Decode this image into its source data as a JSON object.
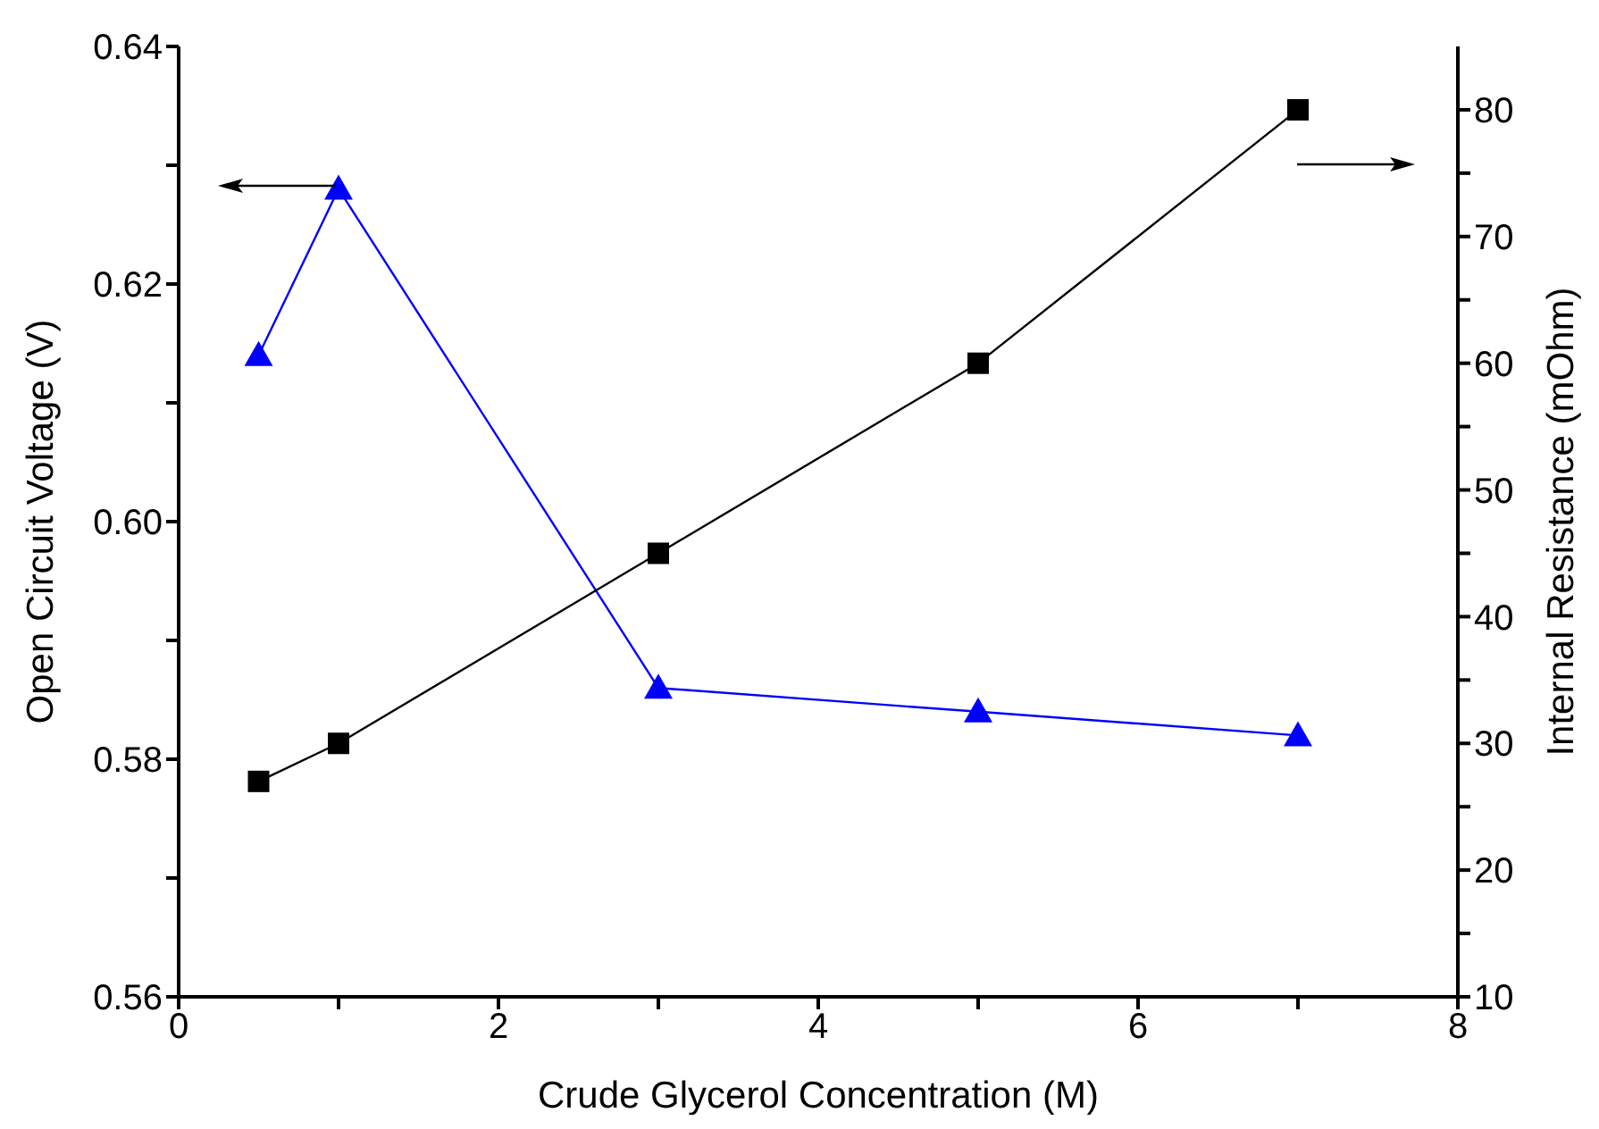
{
  "chart_data": {
    "type": "line",
    "xlabel": "Crude Glycerol Concentration (M)",
    "ylabel": "Open Circuit Voltage (V)",
    "y2label": "Internal Resistance (mOhm)",
    "x": [
      0.5,
      1,
      3,
      5,
      7
    ],
    "series": [
      {
        "color": "#0000ff",
        "marker": "triangle",
        "values": [
          0.614,
          0.628,
          0.586,
          0.584,
          0.582
        ]
      },
      {
        "color": "#000000",
        "marker": "square",
        "axis": "y2",
        "values": [
          27,
          30,
          45,
          60,
          80
        ]
      }
    ],
    "xlim": [
      0,
      8
    ],
    "xticks": [
      0,
      {
        "value": 1,
        "label": null
      },
      2,
      {
        "value": 3,
        "label": null
      },
      4,
      {
        "value": 5,
        "label": null
      },
      6,
      {
        "value": 7,
        "label": null
      },
      8
    ],
    "ylim": [
      0.56,
      0.64
    ],
    "yticks": [
      {
        "value": 0.56,
        "label": "0.56"
      },
      {
        "value": 0.57,
        "label": null
      },
      {
        "value": 0.58,
        "label": "0.58"
      },
      {
        "value": 0.59,
        "label": null
      },
      {
        "value": 0.6,
        "label": "0.60"
      },
      {
        "value": 0.61,
        "label": null
      },
      {
        "value": 0.62,
        "label": "0.62"
      },
      {
        "value": 0.63,
        "label": null
      },
      {
        "value": 0.64,
        "label": "0.64"
      }
    ],
    "y2lim": [
      10,
      85
    ],
    "y2ticks": [
      10,
      {
        "value": 15,
        "label": null
      },
      20,
      {
        "value": 25,
        "label": null
      },
      30,
      {
        "value": 35,
        "label": null
      },
      40,
      {
        "value": 45,
        "label": null
      },
      50,
      {
        "value": 55,
        "label": null
      },
      60,
      {
        "value": 65,
        "label": null
      },
      70,
      {
        "value": 75,
        "label": null
      },
      80
    ],
    "grid": false,
    "legend": false
  }
}
